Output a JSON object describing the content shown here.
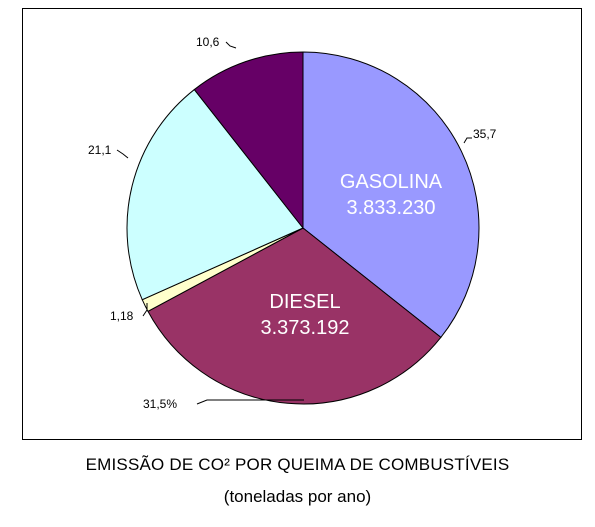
{
  "chart_data": {
    "type": "pie",
    "title": "EMISSÃO DE CO² POR QUEIMA DE COMBUSTÍVEIS",
    "subtitle": "(toneladas por ano)",
    "start_angle_deg": 0,
    "direction": "clockwise",
    "legend": "none",
    "slices": [
      {
        "label": "35,7",
        "value": 35.7,
        "color": "#9999ff",
        "inner_label": [
          "GASOLINA",
          "3.833.230"
        ]
      },
      {
        "label": "31,5%",
        "value": 31.5,
        "color": "#993366",
        "inner_label": [
          "DIESEL",
          "3.373.192"
        ]
      },
      {
        "label": "1,18",
        "value": 1.18,
        "color": "#ffffcc",
        "inner_label": []
      },
      {
        "label": "21,1",
        "value": 21.1,
        "color": "#ccffff",
        "inner_label": []
      },
      {
        "label": "10,6",
        "value": 10.6,
        "color": "#660066",
        "inner_label": []
      }
    ]
  }
}
